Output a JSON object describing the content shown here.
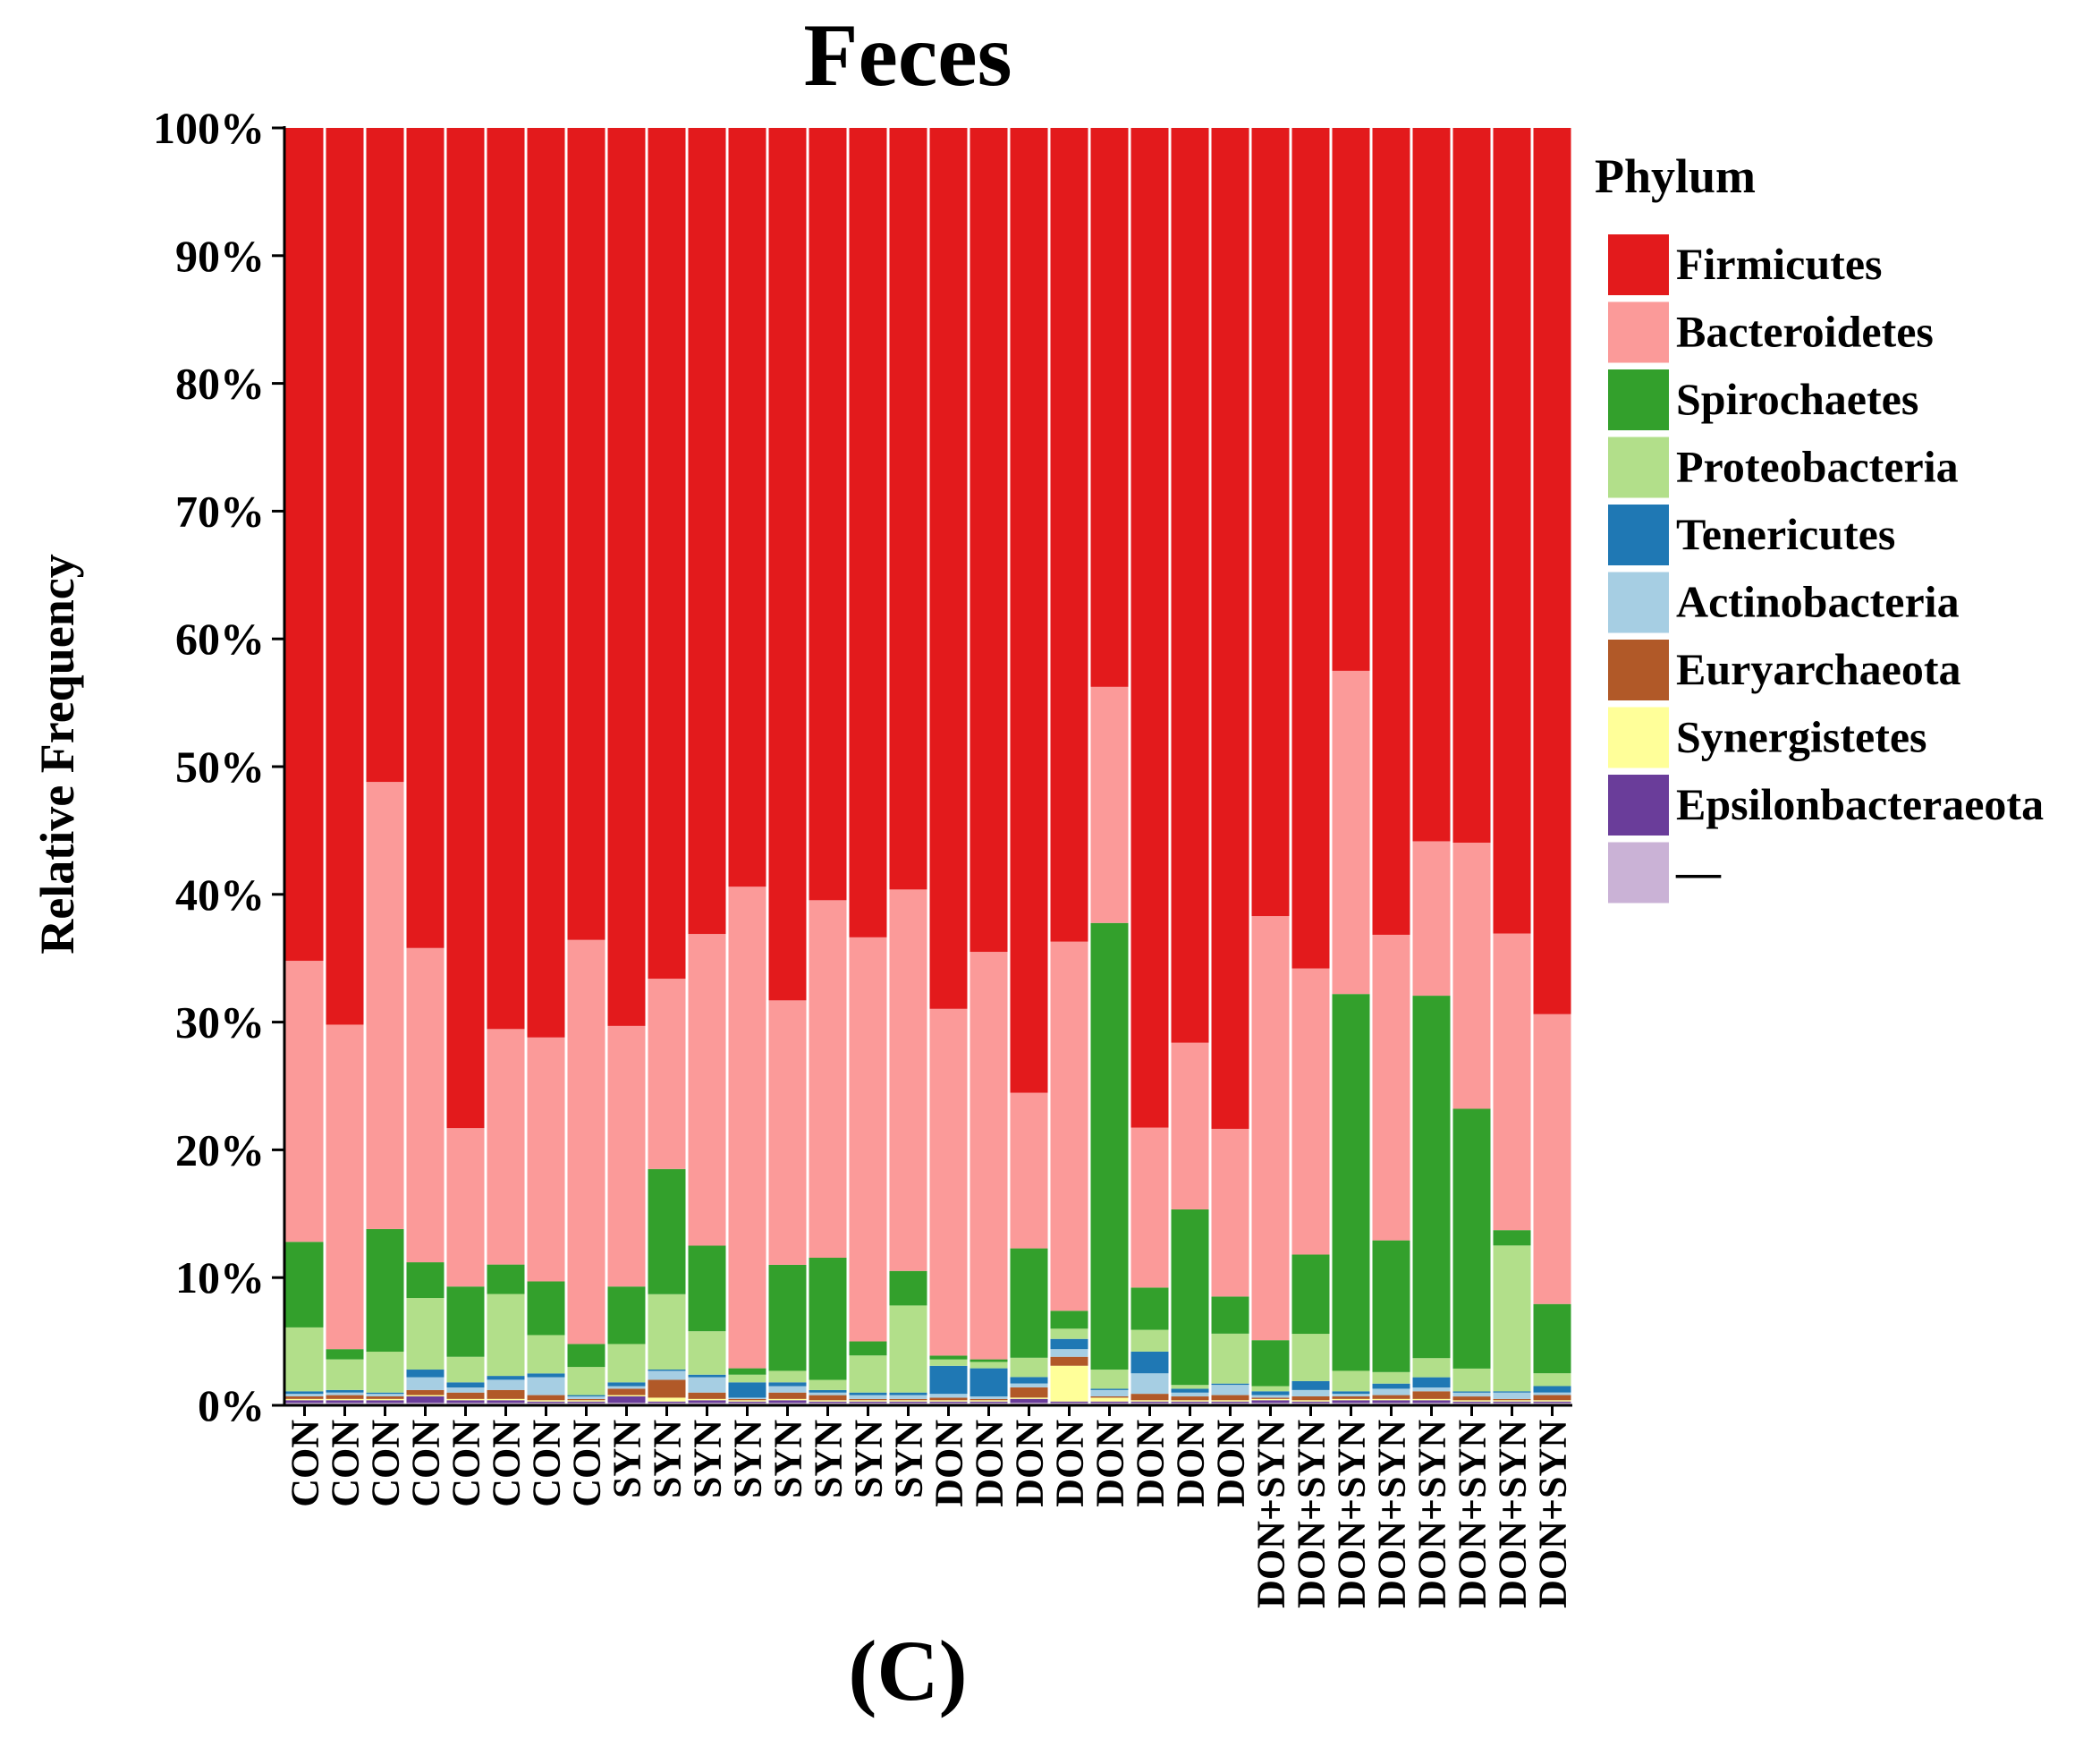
{
  "chart_data": {
    "type": "bar",
    "stacked": true,
    "normalized": true,
    "title": "Feces",
    "ylabel": "Relative Frequency",
    "xlabel": "",
    "panel_label": "(C)",
    "ylim": [
      0,
      100
    ],
    "yticks": [
      "0%",
      "10%",
      "20%",
      "30%",
      "40%",
      "50%",
      "60%",
      "70%",
      "80%",
      "90%",
      "100%"
    ],
    "legend_title": "Phylum",
    "legend_position": "right",
    "categories": [
      "CON",
      "CON",
      "CON",
      "CON",
      "CON",
      "CON",
      "CON",
      "CON",
      "SYN",
      "SYN",
      "SYN",
      "SYN",
      "SYN",
      "SYN",
      "SYN",
      "SYN",
      "DON",
      "DON",
      "DON",
      "DON",
      "DON",
      "DON",
      "DON",
      "DON",
      "DON+SYN",
      "DON+SYN",
      "DON+SYN",
      "DON+SYN",
      "DON+SYN",
      "DON+SYN",
      "DON+SYN",
      "DON+SYN"
    ],
    "series": [
      {
        "name": "—",
        "color": "#cab2d6",
        "values": [
          0.2,
          0.2,
          0.2,
          0.2,
          0.2,
          0.2,
          0.2,
          0.2,
          0.2,
          0.2,
          0.2,
          0.2,
          0.2,
          0.2,
          0.2,
          0.2,
          0.2,
          0.2,
          0.2,
          0.2,
          0.2,
          0.2,
          0.2,
          0.2,
          0.2,
          0.2,
          0.2,
          0.2,
          0.2,
          0.2,
          0.2,
          0.2
        ]
      },
      {
        "name": "Epsilonbacteraeota",
        "color": "#6a3d9a",
        "values": [
          0.2,
          0.2,
          0.2,
          0.5,
          0.2,
          0.2,
          0.1,
          0.1,
          0.5,
          0.1,
          0.2,
          0.1,
          0.2,
          0.1,
          0.1,
          0.1,
          0.1,
          0.1,
          0.3,
          0.1,
          0.1,
          0.1,
          0.1,
          0.1,
          0.2,
          0.1,
          0.2,
          0.2,
          0.2,
          0.1,
          0.1,
          0.1
        ]
      },
      {
        "name": "Synergistetes",
        "color": "#ffff99",
        "values": [
          0.1,
          0.1,
          0.1,
          0.1,
          0.1,
          0.1,
          0.1,
          0.1,
          0.1,
          0.3,
          0.1,
          0.1,
          0.1,
          0.1,
          0.1,
          0.1,
          0.1,
          0.1,
          0.1,
          2.8,
          0.3,
          0.1,
          0.1,
          0.1,
          0.1,
          0.1,
          0.1,
          0.1,
          0.1,
          0.1,
          0.1,
          0.1
        ]
      },
      {
        "name": "Euryarchaeota",
        "color": "#b15928",
        "values": [
          0.2,
          0.3,
          0.2,
          0.4,
          0.5,
          0.7,
          0.4,
          0.1,
          0.5,
          1.4,
          0.5,
          0.1,
          0.5,
          0.4,
          0.1,
          0.1,
          0.2,
          0.1,
          0.8,
          0.7,
          0.1,
          0.5,
          0.3,
          0.4,
          0.1,
          0.3,
          0.2,
          0.3,
          0.6,
          0.3,
          0.1,
          0.4
        ]
      },
      {
        "name": "Actinobacteria",
        "color": "#a6cee3",
        "values": [
          0.2,
          0.2,
          0.2,
          1.0,
          0.4,
          0.8,
          1.4,
          0.2,
          0.2,
          0.7,
          1.2,
          0.1,
          0.5,
          0.2,
          0.3,
          0.3,
          0.3,
          0.2,
          0.3,
          0.6,
          0.5,
          1.6,
          0.3,
          0.8,
          0.2,
          0.5,
          0.2,
          0.5,
          0.3,
          0.3,
          0.5,
          0.2
        ]
      },
      {
        "name": "Tenericutes",
        "color": "#1f78b4",
        "values": [
          0.2,
          0.2,
          0.1,
          0.6,
          0.4,
          0.3,
          0.3,
          0.1,
          0.3,
          0.1,
          0.2,
          1.2,
          0.3,
          0.2,
          0.2,
          0.2,
          2.2,
          2.2,
          0.5,
          0.8,
          0.1,
          1.7,
          0.3,
          0.1,
          0.3,
          0.7,
          0.2,
          0.4,
          0.8,
          0.1,
          0.1,
          0.5
        ]
      },
      {
        "name": "Proteobacteria",
        "color": "#b2df8a",
        "values": [
          5.0,
          2.4,
          3.2,
          5.6,
          2.0,
          6.4,
          3.0,
          2.2,
          3.0,
          5.9,
          3.4,
          0.6,
          0.9,
          0.8,
          2.9,
          6.8,
          0.5,
          0.5,
          1.5,
          0.8,
          1.5,
          1.7,
          0.3,
          3.9,
          0.4,
          3.7,
          1.6,
          0.9,
          1.5,
          1.8,
          11.4,
          1.0
        ]
      },
      {
        "name": "Spirochaetes",
        "color": "#33a02c",
        "values": [
          6.7,
          0.8,
          9.6,
          2.8,
          5.5,
          2.3,
          4.2,
          1.8,
          4.5,
          9.8,
          6.7,
          0.5,
          8.3,
          9.6,
          1.1,
          2.7,
          0.3,
          0.2,
          8.5,
          1.4,
          35.0,
          3.3,
          13.8,
          2.9,
          3.6,
          6.2,
          29.5,
          10.3,
          28.4,
          20.5,
          1.2,
          5.4
        ]
      },
      {
        "name": "Bacteroidetes",
        "color": "#fb9a99",
        "values": [
          22.0,
          25.4,
          35.0,
          24.6,
          12.4,
          18.4,
          19.1,
          31.6,
          20.4,
          14.9,
          24.4,
          37.7,
          20.7,
          28.1,
          31.6,
          29.8,
          27.2,
          31.9,
          12.1,
          28.9,
          18.5,
          12.5,
          13.1,
          13.1,
          33.2,
          22.4,
          25.3,
          23.9,
          12.1,
          21.0,
          23.2,
          22.6
        ]
      },
      {
        "name": "Firmicutes",
        "color": "#e31a1c",
        "values": [
          65.2,
          70.2,
          51.2,
          64.2,
          78.3,
          70.4,
          71.2,
          63.5,
          70.3,
          66.6,
          63.1,
          59.4,
          68.3,
          60.7,
          63.3,
          59.5,
          69.1,
          64.5,
          75.0,
          63.7,
          43.8,
          78.1,
          71.9,
          78.2,
          61.7,
          65.8,
          42.5,
          63.1,
          55.9,
          56.4,
          63.0,
          69.1
        ]
      }
    ]
  }
}
